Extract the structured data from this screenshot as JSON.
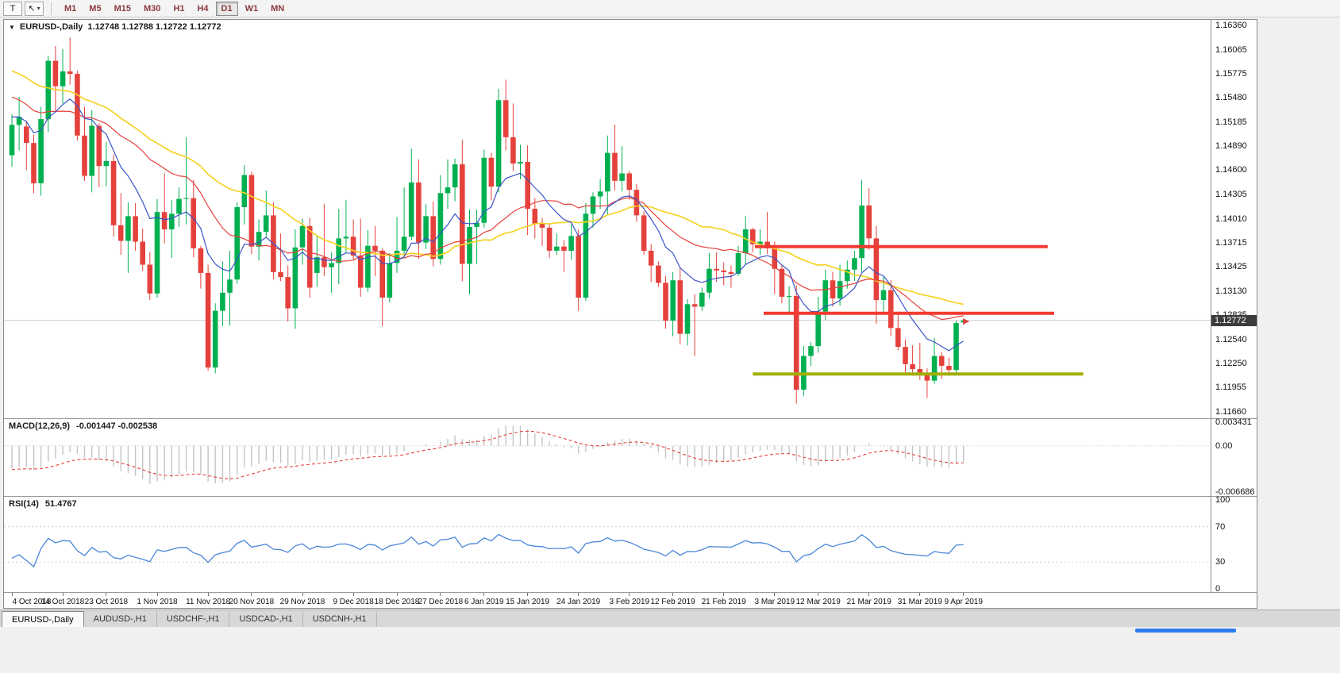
{
  "colors": {
    "up": "#00b050",
    "down": "#e5413c",
    "ma_fast": "#3a53c8",
    "ma_mid": "#e5413c",
    "ma_slow": "#f5d327",
    "macd_hist": "#c4c4c4",
    "macd_signal": "#e5413c",
    "rsi": "#4a86d8",
    "hline_red": "#f23b30",
    "hline_support": "#a2ae00",
    "badge_bg": "#3c3c3c",
    "badge_text": "#ffffff",
    "timeframe_text": "#8a3a3a"
  },
  "toolbar": {
    "tools": [
      {
        "name": "text-tool",
        "glyph": "T"
      },
      {
        "name": "cursor-tool",
        "glyph": "↖",
        "caret": "▾"
      }
    ],
    "timeframes": [
      {
        "label": "M1",
        "active": false
      },
      {
        "label": "M5",
        "active": false
      },
      {
        "label": "M15",
        "active": false
      },
      {
        "label": "M30",
        "active": false
      },
      {
        "label": "H1",
        "active": false
      },
      {
        "label": "H4",
        "active": false
      },
      {
        "label": "D1",
        "active": true
      },
      {
        "label": "W1",
        "active": false
      },
      {
        "label": "MN",
        "active": false
      }
    ]
  },
  "chart": {
    "legend": {
      "dropdown": "▼",
      "symbol": "EURUSD-,Daily",
      "ohlc": "1.12748 1.12788 1.12722 1.12772"
    },
    "price_scale": {
      "labels": [
        "1.16360",
        "1.16065",
        "1.15775",
        "1.15480",
        "1.15185",
        "1.14890",
        "1.14600",
        "1.14305",
        "1.14010",
        "1.13715",
        "1.13425",
        "1.13130",
        "1.12835",
        "1.12540",
        "1.12250",
        "1.11955",
        "1.11660"
      ]
    },
    "current_price": {
      "value": "1.12772",
      "price": 1.12772
    },
    "hlines": [
      {
        "price": 1.1367,
        "color": "#f23b30",
        "from_index": 102.3,
        "to_index": 142.6,
        "width": 4
      },
      {
        "price": 1.1286,
        "color": "#f23b30",
        "from_index": 103.5,
        "to_index": 143.5,
        "width": 4
      },
      {
        "price": 1.1212,
        "color": "#a2ae00",
        "from_index": 102.0,
        "to_index": 147.5,
        "width": 4
      }
    ],
    "marker": {
      "type": "sell-arrow",
      "index": 131.7,
      "price": 1.1276,
      "color": "#e5413c"
    }
  },
  "chart_data": {
    "type": "candlestick",
    "symbol": "EURUSD",
    "timeframe": "Daily",
    "ylim": [
      1.1166,
      1.1636
    ],
    "overlays": [
      {
        "name": "ma-slow",
        "type": "sma",
        "period": 34,
        "color": "#f5d327",
        "width": 1.7
      },
      {
        "name": "ma-mid",
        "type": "sma",
        "period": 21,
        "color": "#e5413c",
        "width": 1.2
      },
      {
        "name": "ma-fast",
        "type": "ema",
        "period": 10,
        "color": "#3a53c8",
        "width": 1.2
      }
    ],
    "candles": [
      [
        "2018-10-04",
        1.1478,
        1.1528,
        1.1464,
        1.1515
      ],
      [
        "2018-10-05",
        1.1515,
        1.1549,
        1.1484,
        1.1525
      ],
      [
        "2018-10-08",
        1.1513,
        1.152,
        1.146,
        1.1493
      ],
      [
        "2018-10-09",
        1.1493,
        1.1503,
        1.1432,
        1.1444
      ],
      [
        "2018-10-10",
        1.1444,
        1.1537,
        1.1429,
        1.1522
      ],
      [
        "2018-10-11",
        1.1522,
        1.1599,
        1.1506,
        1.1593
      ],
      [
        "2018-10-12",
        1.1593,
        1.1611,
        1.1532,
        1.1562
      ],
      [
        "2018-10-15",
        1.1562,
        1.1607,
        1.1541,
        1.158
      ],
      [
        "2018-10-16",
        1.158,
        1.1621,
        1.1564,
        1.1577
      ],
      [
        "2018-10-17",
        1.1577,
        1.1581,
        1.1496,
        1.1502
      ],
      [
        "2018-10-18",
        1.1502,
        1.1537,
        1.1447,
        1.1453
      ],
      [
        "2018-10-19",
        1.1453,
        1.1533,
        1.1433,
        1.1514
      ],
      [
        "2018-10-22",
        1.1514,
        1.1517,
        1.1439,
        1.1465
      ],
      [
        "2018-10-23",
        1.1465,
        1.1494,
        1.144,
        1.1471
      ],
      [
        "2018-10-24",
        1.1471,
        1.1479,
        1.1379,
        1.1393
      ],
      [
        "2018-10-25",
        1.1393,
        1.1432,
        1.1357,
        1.1374
      ],
      [
        "2018-10-26",
        1.1374,
        1.1421,
        1.1335,
        1.1404
      ],
      [
        "2018-10-29",
        1.1404,
        1.142,
        1.1362,
        1.1373
      ],
      [
        "2018-10-30",
        1.1373,
        1.1389,
        1.1337,
        1.1345
      ],
      [
        "2018-10-31",
        1.1345,
        1.136,
        1.1302,
        1.131
      ],
      [
        "2018-11-01",
        1.131,
        1.1425,
        1.1305,
        1.1409
      ],
      [
        "2018-11-02",
        1.1409,
        1.1456,
        1.1371,
        1.1388
      ],
      [
        "2018-11-05",
        1.1388,
        1.1424,
        1.1353,
        1.1407
      ],
      [
        "2018-11-06",
        1.1407,
        1.1439,
        1.1391,
        1.1425
      ],
      [
        "2018-11-07",
        1.1425,
        1.15,
        1.1394,
        1.1426
      ],
      [
        "2018-11-08",
        1.1426,
        1.1448,
        1.1354,
        1.1365
      ],
      [
        "2018-11-09",
        1.1365,
        1.1368,
        1.1316,
        1.1335
      ],
      [
        "2018-11-12",
        1.1335,
        1.1345,
        1.1216,
        1.122
      ],
      [
        "2018-11-13",
        1.122,
        1.1298,
        1.1213,
        1.1289
      ],
      [
        "2018-11-14",
        1.1289,
        1.1349,
        1.127,
        1.1311
      ],
      [
        "2018-11-15",
        1.1311,
        1.1362,
        1.1271,
        1.1327
      ],
      [
        "2018-11-16",
        1.1327,
        1.1421,
        1.1322,
        1.1415
      ],
      [
        "2018-11-19",
        1.1415,
        1.1466,
        1.1394,
        1.1454
      ],
      [
        "2018-11-20",
        1.1454,
        1.1458,
        1.1358,
        1.1367
      ],
      [
        "2018-11-21",
        1.1367,
        1.14,
        1.135,
        1.1385
      ],
      [
        "2018-11-22",
        1.1385,
        1.1435,
        1.1378,
        1.1405
      ],
      [
        "2018-11-23",
        1.1405,
        1.1421,
        1.1327,
        1.1336
      ],
      [
        "2018-11-26",
        1.1336,
        1.1383,
        1.1325,
        1.133
      ],
      [
        "2018-11-27",
        1.133,
        1.1344,
        1.1276,
        1.1292
      ],
      [
        "2018-11-28",
        1.1292,
        1.1388,
        1.1267,
        1.1366
      ],
      [
        "2018-11-29",
        1.1366,
        1.1401,
        1.1345,
        1.1392
      ],
      [
        "2018-11-30",
        1.1392,
        1.1402,
        1.1305,
        1.1317
      ],
      [
        "2018-12-03",
        1.1335,
        1.138,
        1.1318,
        1.1354
      ],
      [
        "2018-12-04",
        1.1354,
        1.1419,
        1.1331,
        1.1342
      ],
      [
        "2018-12-05",
        1.1342,
        1.136,
        1.1311,
        1.1347
      ],
      [
        "2018-12-06",
        1.1347,
        1.1413,
        1.1321,
        1.1377
      ],
      [
        "2018-12-07",
        1.1377,
        1.1424,
        1.136,
        1.1379
      ],
      [
        "2018-12-10",
        1.1379,
        1.14,
        1.135,
        1.1356
      ],
      [
        "2018-12-11",
        1.1356,
        1.1401,
        1.1306,
        1.1317
      ],
      [
        "2018-12-12",
        1.1317,
        1.1387,
        1.1312,
        1.1368
      ],
      [
        "2018-12-13",
        1.1368,
        1.1392,
        1.1331,
        1.1362
      ],
      [
        "2018-12-14",
        1.1362,
        1.1365,
        1.127,
        1.1305
      ],
      [
        "2018-12-17",
        1.1305,
        1.1359,
        1.1299,
        1.1347
      ],
      [
        "2018-12-18",
        1.1347,
        1.1403,
        1.1335,
        1.1362
      ],
      [
        "2018-12-19",
        1.1362,
        1.1439,
        1.1355,
        1.1379
      ],
      [
        "2018-12-20",
        1.1379,
        1.1486,
        1.1375,
        1.1445
      ],
      [
        "2018-12-21",
        1.1445,
        1.1473,
        1.1352,
        1.1372
      ],
      [
        "2018-12-24",
        1.1372,
        1.1419,
        1.1364,
        1.1404
      ],
      [
        "2018-12-26",
        1.1404,
        1.1422,
        1.1343,
        1.1352
      ],
      [
        "2018-12-27",
        1.1352,
        1.1454,
        1.1345,
        1.1432
      ],
      [
        "2018-12-28",
        1.1432,
        1.1473,
        1.1413,
        1.1439
      ],
      [
        "2018-12-31",
        1.1439,
        1.1474,
        1.1422,
        1.1467
      ],
      [
        "2019-01-02",
        1.1467,
        1.1497,
        1.1325,
        1.1346
      ],
      [
        "2019-01-03",
        1.1346,
        1.1412,
        1.1309,
        1.1391
      ],
      [
        "2019-01-04",
        1.1391,
        1.1412,
        1.1346,
        1.1396
      ],
      [
        "2019-01-07",
        1.1396,
        1.1485,
        1.139,
        1.1475
      ],
      [
        "2019-01-08",
        1.1475,
        1.1481,
        1.1423,
        1.144
      ],
      [
        "2019-01-09",
        1.144,
        1.1559,
        1.1433,
        1.1545
      ],
      [
        "2019-01-10",
        1.1545,
        1.157,
        1.1484,
        1.15
      ],
      [
        "2019-01-11",
        1.15,
        1.1541,
        1.1459,
        1.1468
      ],
      [
        "2019-01-14",
        1.1468,
        1.1491,
        1.1449,
        1.147
      ],
      [
        "2019-01-15",
        1.147,
        1.149,
        1.1381,
        1.1413
      ],
      [
        "2019-01-16",
        1.1413,
        1.1426,
        1.1377,
        1.1395
      ],
      [
        "2019-01-17",
        1.1395,
        1.1402,
        1.1368,
        1.139
      ],
      [
        "2019-01-18",
        1.139,
        1.1394,
        1.1353,
        1.1362
      ],
      [
        "2019-01-21",
        1.1362,
        1.1383,
        1.1357,
        1.1367
      ],
      [
        "2019-01-22",
        1.1367,
        1.1375,
        1.1336,
        1.1362
      ],
      [
        "2019-01-23",
        1.1362,
        1.1394,
        1.1351,
        1.138
      ],
      [
        "2019-01-24",
        1.138,
        1.1388,
        1.1289,
        1.1305
      ],
      [
        "2019-01-25",
        1.1305,
        1.142,
        1.1301,
        1.1407
      ],
      [
        "2019-01-28",
        1.1407,
        1.1433,
        1.139,
        1.1428
      ],
      [
        "2019-01-29",
        1.1428,
        1.1449,
        1.1413,
        1.1434
      ],
      [
        "2019-01-30",
        1.1434,
        1.1502,
        1.1406,
        1.1481
      ],
      [
        "2019-01-31",
        1.1481,
        1.1515,
        1.1435,
        1.1447
      ],
      [
        "2019-02-01",
        1.1447,
        1.1489,
        1.1434,
        1.1456
      ],
      [
        "2019-02-04",
        1.1456,
        1.1459,
        1.1424,
        1.1436
      ],
      [
        "2019-02-05",
        1.1436,
        1.1443,
        1.1397,
        1.1405
      ],
      [
        "2019-02-06",
        1.1405,
        1.141,
        1.1357,
        1.1362
      ],
      [
        "2019-02-07",
        1.1362,
        1.137,
        1.1324,
        1.1344
      ],
      [
        "2019-02-08",
        1.1344,
        1.1349,
        1.1318,
        1.1323
      ],
      [
        "2019-02-11",
        1.1323,
        1.1331,
        1.1267,
        1.1277
      ],
      [
        "2019-02-12",
        1.1277,
        1.1336,
        1.1258,
        1.1326
      ],
      [
        "2019-02-13",
        1.1326,
        1.1341,
        1.1248,
        1.1261
      ],
      [
        "2019-02-14",
        1.1261,
        1.1303,
        1.1247,
        1.1297
      ],
      [
        "2019-02-15",
        1.1297,
        1.1309,
        1.1234,
        1.1294
      ],
      [
        "2019-02-18",
        1.1294,
        1.1317,
        1.1289,
        1.1311
      ],
      [
        "2019-02-19",
        1.1311,
        1.1359,
        1.1304,
        1.134
      ],
      [
        "2019-02-20",
        1.134,
        1.136,
        1.1324,
        1.1338
      ],
      [
        "2019-02-21",
        1.1338,
        1.1348,
        1.132,
        1.1336
      ],
      [
        "2019-02-22",
        1.1336,
        1.1344,
        1.1317,
        1.1334
      ],
      [
        "2019-02-25",
        1.1334,
        1.1368,
        1.1331,
        1.1359
      ],
      [
        "2019-02-26",
        1.1359,
        1.1404,
        1.1345,
        1.1388
      ],
      [
        "2019-02-27",
        1.1388,
        1.139,
        1.136,
        1.137
      ],
      [
        "2019-02-28",
        1.137,
        1.1388,
        1.1357,
        1.1373
      ],
      [
        "2019-03-01",
        1.1373,
        1.1409,
        1.1358,
        1.1365
      ],
      [
        "2019-03-04",
        1.1365,
        1.1373,
        1.1309,
        1.134
      ],
      [
        "2019-03-05",
        1.134,
        1.1344,
        1.1298,
        1.1306
      ],
      [
        "2019-03-06",
        1.1306,
        1.1319,
        1.1285,
        1.1307
      ],
      [
        "2019-03-07",
        1.1307,
        1.132,
        1.1176,
        1.1193
      ],
      [
        "2019-03-08",
        1.1193,
        1.1246,
        1.1185,
        1.1234
      ],
      [
        "2019-03-11",
        1.1234,
        1.1251,
        1.1222,
        1.1246
      ],
      [
        "2019-03-12",
        1.1246,
        1.1306,
        1.1238,
        1.1288
      ],
      [
        "2019-03-13",
        1.1288,
        1.1339,
        1.1278,
        1.1326
      ],
      [
        "2019-03-14",
        1.1326,
        1.1336,
        1.1294,
        1.1304
      ],
      [
        "2019-03-15",
        1.1304,
        1.1345,
        1.1295,
        1.1325
      ],
      [
        "2019-03-18",
        1.1325,
        1.135,
        1.1316,
        1.1339
      ],
      [
        "2019-03-19",
        1.1339,
        1.1362,
        1.1325,
        1.1353
      ],
      [
        "2019-03-20",
        1.1353,
        1.1448,
        1.1336,
        1.1417
      ],
      [
        "2019-03-21",
        1.1417,
        1.1438,
        1.1363,
        1.1377
      ],
      [
        "2019-03-22",
        1.1377,
        1.1392,
        1.1273,
        1.1302
      ],
      [
        "2019-03-25",
        1.1302,
        1.1331,
        1.1288,
        1.1314
      ],
      [
        "2019-03-26",
        1.1314,
        1.1326,
        1.1258,
        1.1268
      ],
      [
        "2019-03-27",
        1.1268,
        1.1288,
        1.1241,
        1.1245
      ],
      [
        "2019-03-28",
        1.1245,
        1.1254,
        1.1214,
        1.1224
      ],
      [
        "2019-03-29",
        1.1224,
        1.1247,
        1.121,
        1.1218
      ],
      [
        "2019-04-01",
        1.1218,
        1.125,
        1.1205,
        1.1212
      ],
      [
        "2019-04-02",
        1.1212,
        1.1219,
        1.1183,
        1.1204
      ],
      [
        "2019-04-03",
        1.1204,
        1.1256,
        1.12,
        1.1234
      ],
      [
        "2019-04-04",
        1.1234,
        1.1239,
        1.1206,
        1.1222
      ],
      [
        "2019-04-05",
        1.1222,
        1.1232,
        1.121,
        1.1217
      ],
      [
        "2019-04-08",
        1.1217,
        1.1277,
        1.1212,
        1.1274
      ],
      [
        "2019-04-09",
        1.12748,
        1.12788,
        1.12722,
        1.12772
      ]
    ]
  },
  "macd": {
    "label": "MACD(12,26,9)",
    "values": "-0.001447 -0.002538",
    "params": [
      12,
      26,
      9
    ],
    "max": 0.003431,
    "min": -0.006686,
    "scale_labels": [
      "0.003431",
      "0.00",
      "-0.006686"
    ]
  },
  "rsi": {
    "label": "RSI(14)",
    "value": "51.4767",
    "period": 14,
    "levels": [
      70,
      30
    ],
    "scale_labels": [
      "100",
      "70",
      "30",
      "0"
    ]
  },
  "date_axis": [
    {
      "label": "4 Oct 2018",
      "index": 0
    },
    {
      "label": "14 Oct 2018",
      "index": 7
    },
    {
      "label": "23 Oct 2018",
      "index": 13
    },
    {
      "label": "1 Nov 2018",
      "index": 20
    },
    {
      "label": "11 Nov 2018",
      "index": 27
    },
    {
      "label": "20 Nov 2018",
      "index": 33
    },
    {
      "label": "29 Nov 2018",
      "index": 40
    },
    {
      "label": "9 Dec 2018",
      "index": 47
    },
    {
      "label": "18 Dec 2018",
      "index": 53
    },
    {
      "label": "27 Dec 2018",
      "index": 59
    },
    {
      "label": "6 Jan 2019",
      "index": 65
    },
    {
      "label": "15 Jan 2019",
      "index": 71
    },
    {
      "label": "24 Jan 2019",
      "index": 78
    },
    {
      "label": "3 Feb 2019",
      "index": 85
    },
    {
      "label": "12 Feb 2019",
      "index": 91
    },
    {
      "label": "21 Feb 2019",
      "index": 98
    },
    {
      "label": "3 Mar 2019",
      "index": 105
    },
    {
      "label": "12 Mar 2019",
      "index": 111
    },
    {
      "label": "21 Mar 2019",
      "index": 118
    },
    {
      "label": "31 Mar 2019",
      "index": 125
    },
    {
      "label": "9 Apr 2019",
      "index": 131
    }
  ],
  "tabs": [
    {
      "label": "EURUSD-,Daily",
      "active": true
    },
    {
      "label": "AUDUSD-,H1",
      "active": false
    },
    {
      "label": "USDCHF-,H1",
      "active": false
    },
    {
      "label": "USDCAD-,H1",
      "active": false
    },
    {
      "label": "USDCNH-,H1",
      "active": false
    }
  ]
}
